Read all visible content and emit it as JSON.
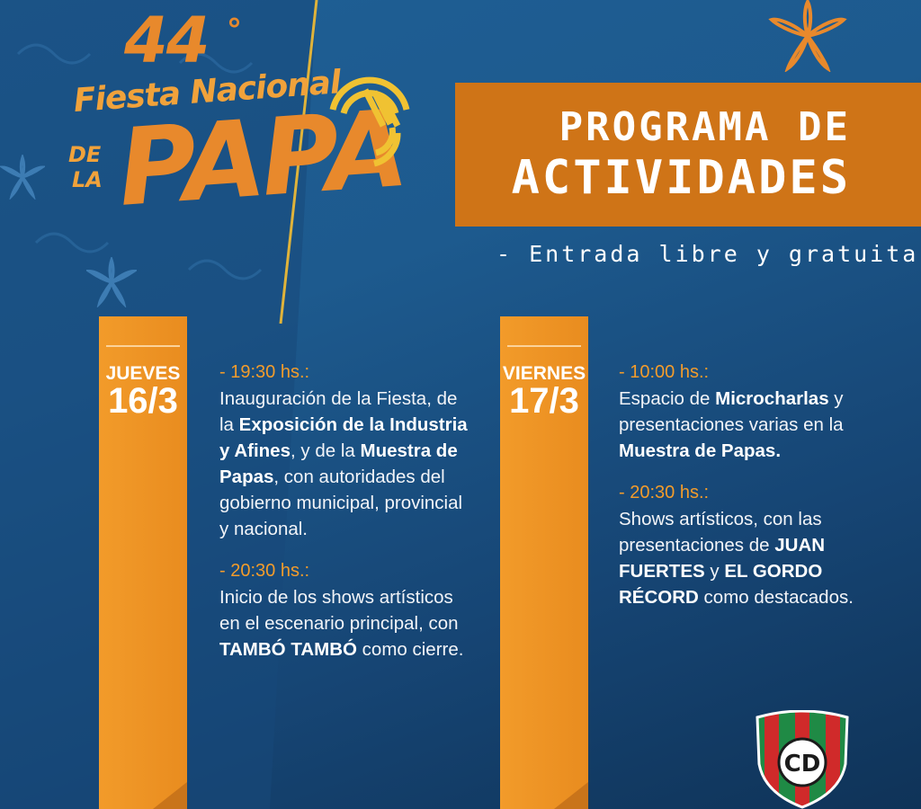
{
  "logo": {
    "edition": "44",
    "degree": "°",
    "line1": "Fiesta Nacional",
    "de": "DE",
    "la": "LA",
    "papa": "PAPA"
  },
  "banner": {
    "line1": "PROGRAMA DE",
    "line2": "ACTIVIDADES",
    "subtitle": "- Entrada libre y gratuita -"
  },
  "days": [
    {
      "day": "JUEVES",
      "date": "16/3",
      "events": [
        {
          "time": "- 19:30 hs.:",
          "parts": [
            {
              "t": "Inauguración de la Fiesta, de la ",
              "b": false
            },
            {
              "t": "Exposición de la Industria y Afines",
              "b": true
            },
            {
              "t": ", y de la ",
              "b": false
            },
            {
              "t": "Muestra de Papas",
              "b": true
            },
            {
              "t": ", con autoridades del gobierno municipal, provincial y nacional.",
              "b": false
            }
          ]
        },
        {
          "time": "- 20:30 hs.:",
          "parts": [
            {
              "t": "Inicio de los shows artísticos en el escenario principal, con ",
              "b": false
            },
            {
              "t": "TAMBÓ TAMBÓ",
              "b": true
            },
            {
              "t": " como cierre.",
              "b": false
            }
          ]
        }
      ]
    },
    {
      "day": "VIERNES",
      "date": "17/3",
      "events": [
        {
          "time": "- 10:00 hs.:",
          "parts": [
            {
              "t": "Espacio de ",
              "b": false
            },
            {
              "t": "Microcharlas",
              "b": true
            },
            {
              "t": " y presentaciones varias en la ",
              "b": false
            },
            {
              "t": "Muestra de Papas.",
              "b": true
            }
          ]
        },
        {
          "time": "- 20:30 hs.:",
          "parts": [
            {
              "t": "Shows artísticos, con las presentaciones de ",
              "b": false
            },
            {
              "t": "JUAN FUERTES",
              "b": true
            },
            {
              "t": " y ",
              "b": false
            },
            {
              "t": "EL GORDO RÉCORD",
              "b": true
            },
            {
              "t": " como destacados.",
              "b": false
            }
          ]
        }
      ]
    }
  ],
  "crest": {
    "letters": "CD"
  },
  "colors": {
    "accent": "#e8892c",
    "banner": "#cf7417",
    "background": "#1d5a8e",
    "time": "#f39c2b"
  }
}
